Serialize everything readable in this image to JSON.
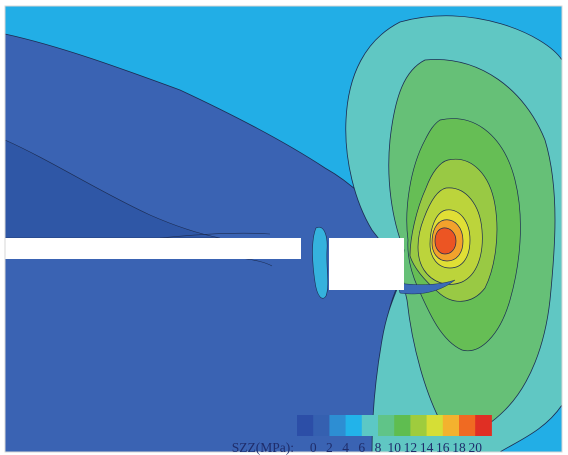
{
  "legend": {
    "title": "SZZ(MPa):",
    "tick_labels": [
      "0",
      "2",
      "4",
      "6",
      "8",
      "10",
      "12",
      "14",
      "16",
      "18",
      "20"
    ],
    "colors": [
      "#2c4ea7",
      "#3560b0",
      "#2d8ed3",
      "#22b3ea",
      "#5cc8c5",
      "#60c488",
      "#5fbd50",
      "#9fcc3d",
      "#d6de36",
      "#f4b22e",
      "#f06a22",
      "#e02f24"
    ]
  }
}
